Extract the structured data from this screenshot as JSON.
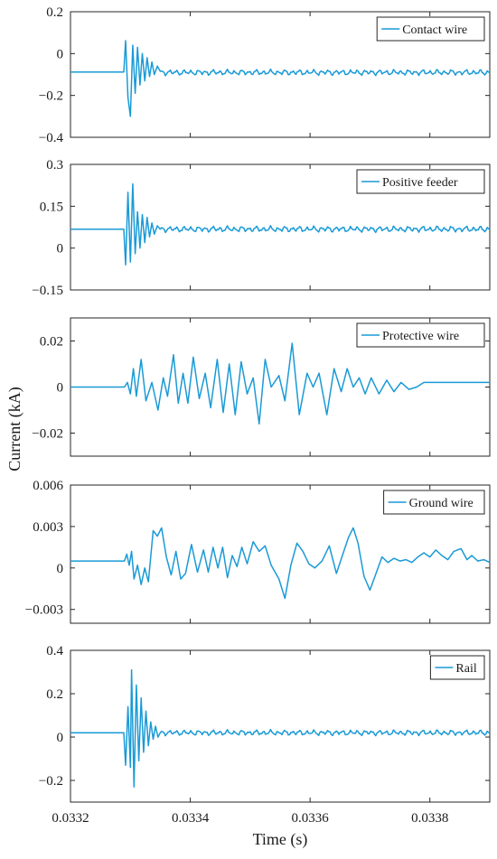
{
  "figure": {
    "xlabel": "Time (s)",
    "ylabel": "Current (kA)",
    "x_ticks": [
      "0.0332",
      "0.0334",
      "0.0336",
      "0.0338"
    ]
  },
  "chart_data": [
    {
      "type": "line",
      "series": [
        {
          "name": "Contact wire",
          "color": "#1a9ad6"
        }
      ],
      "xlim": [
        0.0332,
        0.0339
      ],
      "ylim": [
        -0.4,
        0.2
      ],
      "y_ticks": [
        "0.2",
        "0",
        "−0.2",
        "−0.4"
      ],
      "y_tick_values": [
        0.2,
        0,
        -0.2,
        -0.4
      ],
      "legend": "top-right",
      "baseline": -0.088,
      "after_mean": -0.09,
      "after_amp": 0.014,
      "burst": [
        [
          0.0332,
          -0.088
        ],
        [
          0.033289,
          -0.088
        ],
        [
          0.033292,
          0.062
        ],
        [
          0.033296,
          -0.21
        ],
        [
          0.0333,
          -0.3
        ],
        [
          0.033304,
          0.04
        ],
        [
          0.033308,
          -0.19
        ],
        [
          0.033312,
          0.03
        ],
        [
          0.033316,
          -0.15
        ],
        [
          0.03332,
          0.0
        ],
        [
          0.033324,
          -0.13
        ],
        [
          0.033328,
          -0.02
        ],
        [
          0.033332,
          -0.11
        ],
        [
          0.033336,
          -0.04
        ],
        [
          0.03334,
          -0.1
        ],
        [
          0.033345,
          -0.06
        ],
        [
          0.03335,
          -0.085
        ]
      ]
    },
    {
      "type": "line",
      "series": [
        {
          "name": "Positive feeder",
          "color": "#1a9ad6"
        }
      ],
      "xlim": [
        0.0332,
        0.0339
      ],
      "ylim": [
        -0.15,
        0.3
      ],
      "y_ticks": [
        "0.3",
        "0.15",
        "0",
        "−0.15"
      ],
      "y_tick_values": [
        0.3,
        0.15,
        0,
        -0.15
      ],
      "legend": "top-right",
      "baseline": 0.068,
      "after_mean": 0.068,
      "after_amp": 0.011,
      "burst": [
        [
          0.0332,
          0.068
        ],
        [
          0.033289,
          0.068
        ],
        [
          0.033292,
          -0.06
        ],
        [
          0.033296,
          0.2
        ],
        [
          0.0333,
          -0.05
        ],
        [
          0.033304,
          0.23
        ],
        [
          0.033308,
          -0.02
        ],
        [
          0.033312,
          0.13
        ],
        [
          0.033316,
          0.0
        ],
        [
          0.03332,
          0.12
        ],
        [
          0.033324,
          0.02
        ],
        [
          0.033328,
          0.11
        ],
        [
          0.033332,
          0.04
        ],
        [
          0.033336,
          0.09
        ],
        [
          0.03334,
          0.05
        ],
        [
          0.033345,
          0.08
        ],
        [
          0.03335,
          0.068
        ]
      ]
    },
    {
      "type": "line",
      "series": [
        {
          "name": "Protective wire",
          "color": "#1a9ad6"
        }
      ],
      "xlim": [
        0.0332,
        0.0339
      ],
      "ylim": [
        -0.03,
        0.03
      ],
      "y_ticks": [
        "0.02",
        "0",
        "−0.02"
      ],
      "y_tick_values": [
        0.02,
        0,
        -0.02
      ],
      "legend": "top-right",
      "points": [
        [
          0.0332,
          0.0
        ],
        [
          0.03329,
          0.0
        ],
        [
          0.033295,
          0.002
        ],
        [
          0.0333,
          -0.003
        ],
        [
          0.033305,
          0.008
        ],
        [
          0.03331,
          -0.004
        ],
        [
          0.033318,
          0.012
        ],
        [
          0.033326,
          -0.006
        ],
        [
          0.033336,
          0.002
        ],
        [
          0.033346,
          -0.01
        ],
        [
          0.033355,
          0.004
        ],
        [
          0.033362,
          -0.004
        ],
        [
          0.033372,
          0.014
        ],
        [
          0.03338,
          -0.007
        ],
        [
          0.033388,
          0.006
        ],
        [
          0.033396,
          -0.007
        ],
        [
          0.033405,
          0.013
        ],
        [
          0.033415,
          -0.005
        ],
        [
          0.033425,
          0.006
        ],
        [
          0.033434,
          -0.009
        ],
        [
          0.033445,
          0.012
        ],
        [
          0.033455,
          -0.011
        ],
        [
          0.033465,
          0.01
        ],
        [
          0.033475,
          -0.012
        ],
        [
          0.033485,
          0.011
        ],
        [
          0.033495,
          -0.003
        ],
        [
          0.033505,
          0.004
        ],
        [
          0.033515,
          -0.016
        ],
        [
          0.033525,
          0.012
        ],
        [
          0.033535,
          0.0
        ],
        [
          0.033548,
          0.005
        ],
        [
          0.033558,
          -0.006
        ],
        [
          0.03357,
          0.019
        ],
        [
          0.033582,
          -0.012
        ],
        [
          0.033595,
          0.006
        ],
        [
          0.033605,
          0.0
        ],
        [
          0.033615,
          0.006
        ],
        [
          0.033628,
          -0.012
        ],
        [
          0.03364,
          0.008
        ],
        [
          0.033652,
          -0.002
        ],
        [
          0.033662,
          0.008
        ],
        [
          0.033672,
          0.0
        ],
        [
          0.033682,
          0.004
        ],
        [
          0.033692,
          -0.003
        ],
        [
          0.033702,
          0.004
        ],
        [
          0.033715,
          -0.003
        ],
        [
          0.033728,
          0.003
        ],
        [
          0.03374,
          -0.002
        ],
        [
          0.033752,
          0.002
        ],
        [
          0.033765,
          -0.001
        ],
        [
          0.033778,
          0.0
        ],
        [
          0.03379,
          0.002
        ],
        [
          0.0339,
          0.002
        ]
      ]
    },
    {
      "type": "line",
      "series": [
        {
          "name": "Ground wire",
          "color": "#1a9ad6"
        }
      ],
      "xlim": [
        0.0332,
        0.0339
      ],
      "ylim": [
        -0.004,
        0.006
      ],
      "y_ticks": [
        "0.006",
        "0.003",
        "0",
        "−0.003"
      ],
      "y_tick_values": [
        0.006,
        0.003,
        0,
        -0.003
      ],
      "legend": "top-right",
      "points": [
        [
          0.0332,
          0.0005
        ],
        [
          0.03329,
          0.0005
        ],
        [
          0.033294,
          0.001
        ],
        [
          0.033298,
          0.0002
        ],
        [
          0.033302,
          0.0012
        ],
        [
          0.033306,
          -0.0008
        ],
        [
          0.033312,
          0.0002
        ],
        [
          0.033318,
          -0.0012
        ],
        [
          0.033324,
          0.0
        ],
        [
          0.03333,
          -0.001
        ],
        [
          0.033338,
          0.0027
        ],
        [
          0.033345,
          0.0023
        ],
        [
          0.033352,
          0.0029
        ],
        [
          0.03336,
          0.0008
        ],
        [
          0.033368,
          -0.0005
        ],
        [
          0.033376,
          0.0012
        ],
        [
          0.033384,
          -0.0008
        ],
        [
          0.033392,
          -0.0004
        ],
        [
          0.033402,
          0.0017
        ],
        [
          0.033412,
          -0.0003
        ],
        [
          0.033422,
          0.0013
        ],
        [
          0.03343,
          -0.0003
        ],
        [
          0.033438,
          0.0015
        ],
        [
          0.033446,
          0.0
        ],
        [
          0.033454,
          0.0015
        ],
        [
          0.033462,
          -0.0007
        ],
        [
          0.03347,
          0.0009
        ],
        [
          0.033478,
          0.0001
        ],
        [
          0.033486,
          0.0015
        ],
        [
          0.033495,
          0.0003
        ],
        [
          0.033505,
          0.0019
        ],
        [
          0.033515,
          0.0012
        ],
        [
          0.033525,
          0.0016
        ],
        [
          0.033535,
          0.0002
        ],
        [
          0.033548,
          -0.0008
        ],
        [
          0.033558,
          -0.0022
        ],
        [
          0.033568,
          0.0002
        ],
        [
          0.033578,
          0.0018
        ],
        [
          0.033588,
          0.0012
        ],
        [
          0.033598,
          0.0003
        ],
        [
          0.033608,
          0.0
        ],
        [
          0.03362,
          0.0005
        ],
        [
          0.033632,
          0.0016
        ],
        [
          0.033644,
          -0.0004
        ],
        [
          0.033654,
          0.0009
        ],
        [
          0.033664,
          0.0022
        ],
        [
          0.033672,
          0.0029
        ],
        [
          0.03368,
          0.0018
        ],
        [
          0.03369,
          -0.0006
        ],
        [
          0.0337,
          -0.0016
        ],
        [
          0.03371,
          -0.0004
        ],
        [
          0.03372,
          0.0008
        ],
        [
          0.03373,
          0.0004
        ],
        [
          0.03374,
          0.0007
        ],
        [
          0.03375,
          0.0005
        ],
        [
          0.03376,
          0.0006
        ],
        [
          0.03377,
          0.0004
        ],
        [
          0.03378,
          0.0008
        ],
        [
          0.03379,
          0.0011
        ],
        [
          0.0338,
          0.0008
        ],
        [
          0.03381,
          0.0013
        ],
        [
          0.03382,
          0.0009
        ],
        [
          0.03383,
          0.0006
        ],
        [
          0.03384,
          0.0012
        ],
        [
          0.033852,
          0.0014
        ],
        [
          0.033862,
          0.0006
        ],
        [
          0.03387,
          0.0009
        ],
        [
          0.03388,
          0.0005
        ],
        [
          0.03389,
          0.0006
        ],
        [
          0.0339,
          0.0004
        ]
      ]
    },
    {
      "type": "line",
      "series": [
        {
          "name": "Rail",
          "color": "#1a9ad6"
        }
      ],
      "xlim": [
        0.0332,
        0.0339
      ],
      "ylim": [
        -0.3,
        0.4
      ],
      "y_ticks": [
        "0.4",
        "0.2",
        "0",
        "−0.2"
      ],
      "y_tick_values": [
        0.4,
        0.2,
        0,
        -0.2
      ],
      "legend": "top-right",
      "baseline": 0.02,
      "after_mean": 0.02,
      "after_amp": 0.013,
      "burst": [
        [
          0.0332,
          0.02
        ],
        [
          0.033289,
          0.02
        ],
        [
          0.033292,
          -0.13
        ],
        [
          0.033296,
          0.14
        ],
        [
          0.0333,
          -0.14
        ],
        [
          0.033302,
          0.31
        ],
        [
          0.033306,
          -0.23
        ],
        [
          0.03331,
          0.24
        ],
        [
          0.033314,
          -0.11
        ],
        [
          0.033318,
          0.18
        ],
        [
          0.033322,
          -0.07
        ],
        [
          0.033326,
          0.12
        ],
        [
          0.03333,
          -0.04
        ],
        [
          0.033334,
          0.07
        ],
        [
          0.033338,
          -0.01
        ],
        [
          0.033342,
          0.05
        ],
        [
          0.033346,
          0.0
        ],
        [
          0.03335,
          0.02
        ]
      ]
    }
  ]
}
